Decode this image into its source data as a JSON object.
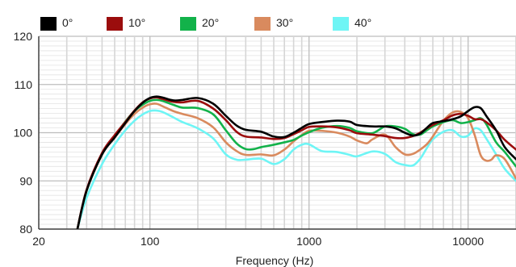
{
  "chart_data": {
    "type": "line",
    "title": "",
    "xlabel": "Frequency (Hz)",
    "ylabel": "",
    "xscale": "log",
    "xlim": [
      20,
      20000
    ],
    "ylim": [
      80,
      120
    ],
    "xticks": [
      20,
      100,
      1000,
      10000
    ],
    "xtick_labels": [
      "20",
      "100",
      "1000",
      "10000"
    ],
    "yticks": [
      80,
      90,
      100,
      110,
      120
    ],
    "ytick_labels": [
      "80",
      "90",
      "100",
      "110",
      "120"
    ],
    "grid": true,
    "legend_position": "top",
    "series": [
      {
        "name": "0°",
        "color": "#000000",
        "x": [
          35,
          40,
          50,
          60,
          70,
          80,
          90,
          100,
          110,
          120,
          140,
          160,
          200,
          250,
          300,
          350,
          400,
          500,
          600,
          700,
          800,
          900,
          1000,
          1200,
          1500,
          1800,
          2000,
          2500,
          3000,
          3500,
          4000,
          4500,
          5000,
          5500,
          6000,
          7000,
          8000,
          9000,
          10000,
          11000,
          12000,
          13000,
          15000,
          17000,
          20000
        ],
        "y": [
          80,
          88,
          95.5,
          99,
          102,
          104.5,
          106.2,
          107.2,
          107.5,
          107.3,
          106.7,
          106.8,
          107.2,
          106,
          103.5,
          101.5,
          100.6,
          100.2,
          99.2,
          99.1,
          100,
          101,
          101.8,
          102.2,
          102.5,
          102.3,
          101.6,
          101.3,
          101.3,
          100.9,
          100,
          99.4,
          99.8,
          101,
          102,
          102.4,
          102.8,
          103.4,
          104.5,
          105.3,
          105.1,
          103.5,
          100.5,
          97,
          94.5
        ]
      },
      {
        "name": "10°",
        "color": "#9b0d0d",
        "x": [
          35,
          40,
          50,
          60,
          70,
          80,
          90,
          100,
          110,
          120,
          140,
          160,
          200,
          250,
          300,
          350,
          400,
          500,
          600,
          700,
          800,
          900,
          1000,
          1200,
          1500,
          1800,
          2000,
          2500,
          3000,
          3500,
          4000,
          4500,
          5000,
          5500,
          6000,
          7000,
          8000,
          9000,
          10000,
          11000,
          12000,
          13000,
          15000,
          17000,
          20000
        ],
        "y": [
          80,
          88.2,
          95.8,
          99.5,
          102.2,
          104.6,
          106.3,
          107.1,
          107.3,
          107,
          106.4,
          106.3,
          106.6,
          105,
          102.6,
          100.2,
          99.2,
          99,
          98.7,
          98.9,
          99.7,
          100.5,
          101.2,
          101.3,
          101.1,
          100.5,
          99.9,
          99.6,
          99.3,
          98.9,
          98.9,
          99.3,
          100,
          100.9,
          101.6,
          102.6,
          103.6,
          103.9,
          103.5,
          102.8,
          102.8,
          102.2,
          100.5,
          98.5,
          96.5
        ]
      },
      {
        "name": "20°",
        "color": "#12b24a",
        "x": [
          35,
          40,
          50,
          60,
          70,
          80,
          90,
          100,
          110,
          120,
          140,
          160,
          200,
          250,
          300,
          350,
          400,
          450,
          500,
          600,
          700,
          800,
          900,
          1000,
          1200,
          1500,
          1800,
          2000,
          2500,
          3000,
          3500,
          4000,
          4500,
          5000,
          5500,
          6000,
          7000,
          8000,
          9000,
          10000,
          11000,
          12000,
          13000,
          15000,
          17000,
          20000
        ],
        "y": [
          80,
          88,
          95.5,
          99.3,
          102.3,
          104.5,
          105.8,
          106.6,
          106.8,
          106.6,
          105.8,
          105.2,
          105.1,
          103.8,
          100.5,
          97.8,
          96.6,
          96.6,
          97,
          97.5,
          98,
          98.5,
          99.4,
          100.1,
          101,
          101.4,
          101,
          100.3,
          99.9,
          101.3,
          101.3,
          100.8,
          99.7,
          99.6,
          100.5,
          101.3,
          102.2,
          102.6,
          102,
          102.2,
          102.6,
          103,
          101.8,
          98,
          96,
          93
        ]
      },
      {
        "name": "30°",
        "color": "#d98a5e",
        "x": [
          35,
          40,
          50,
          60,
          70,
          80,
          90,
          100,
          110,
          120,
          140,
          160,
          200,
          250,
          300,
          350,
          400,
          500,
          600,
          700,
          800,
          900,
          1000,
          1200,
          1500,
          1800,
          2000,
          2300,
          2500,
          3000,
          3500,
          4000,
          4500,
          5000,
          5500,
          6000,
          7000,
          8000,
          9000,
          10000,
          11000,
          12000,
          13000,
          14000,
          15000,
          17000,
          20000
        ],
        "y": [
          80,
          88,
          95.5,
          99,
          101.8,
          103.9,
          105.2,
          105.9,
          106,
          105.5,
          104.5,
          103.9,
          103,
          101.1,
          98,
          96.2,
          95.4,
          95.5,
          95.3,
          96.5,
          98.2,
          99.5,
          100.4,
          100.4,
          100,
          99.2,
          98.4,
          97.8,
          98.6,
          99.6,
          97,
          95.5,
          95.6,
          96.5,
          97.6,
          99.2,
          102.5,
          104.2,
          104.3,
          103,
          99.5,
          95.3,
          94.2,
          94.4,
          95.3,
          94.5,
          90.5
        ]
      },
      {
        "name": "40°",
        "color": "#6ef5f5",
        "x": [
          35,
          40,
          50,
          60,
          70,
          80,
          90,
          100,
          110,
          120,
          140,
          160,
          200,
          250,
          300,
          350,
          400,
          500,
          600,
          700,
          800,
          900,
          1000,
          1200,
          1500,
          1800,
          2000,
          2500,
          3000,
          3500,
          4000,
          4500,
          5000,
          5500,
          6000,
          7000,
          8000,
          9000,
          10000,
          11000,
          12000,
          13000,
          15000,
          17000,
          20000
        ],
        "y": [
          80,
          86.5,
          93.5,
          97.6,
          100.5,
          102.5,
          103.8,
          104.5,
          104.6,
          104.3,
          103.2,
          102.2,
          100.9,
          98.8,
          95.5,
          94.4,
          94.4,
          94.6,
          93.5,
          94.5,
          96.5,
          97.5,
          97.6,
          96.2,
          96,
          95.4,
          95.1,
          96.1,
          95.6,
          93.9,
          93.3,
          93.2,
          94.6,
          96.8,
          98.6,
          100.2,
          100.5,
          99.2,
          99.4,
          100.9,
          100.5,
          98.8,
          95.5,
          92.5,
          90
        ]
      }
    ]
  }
}
